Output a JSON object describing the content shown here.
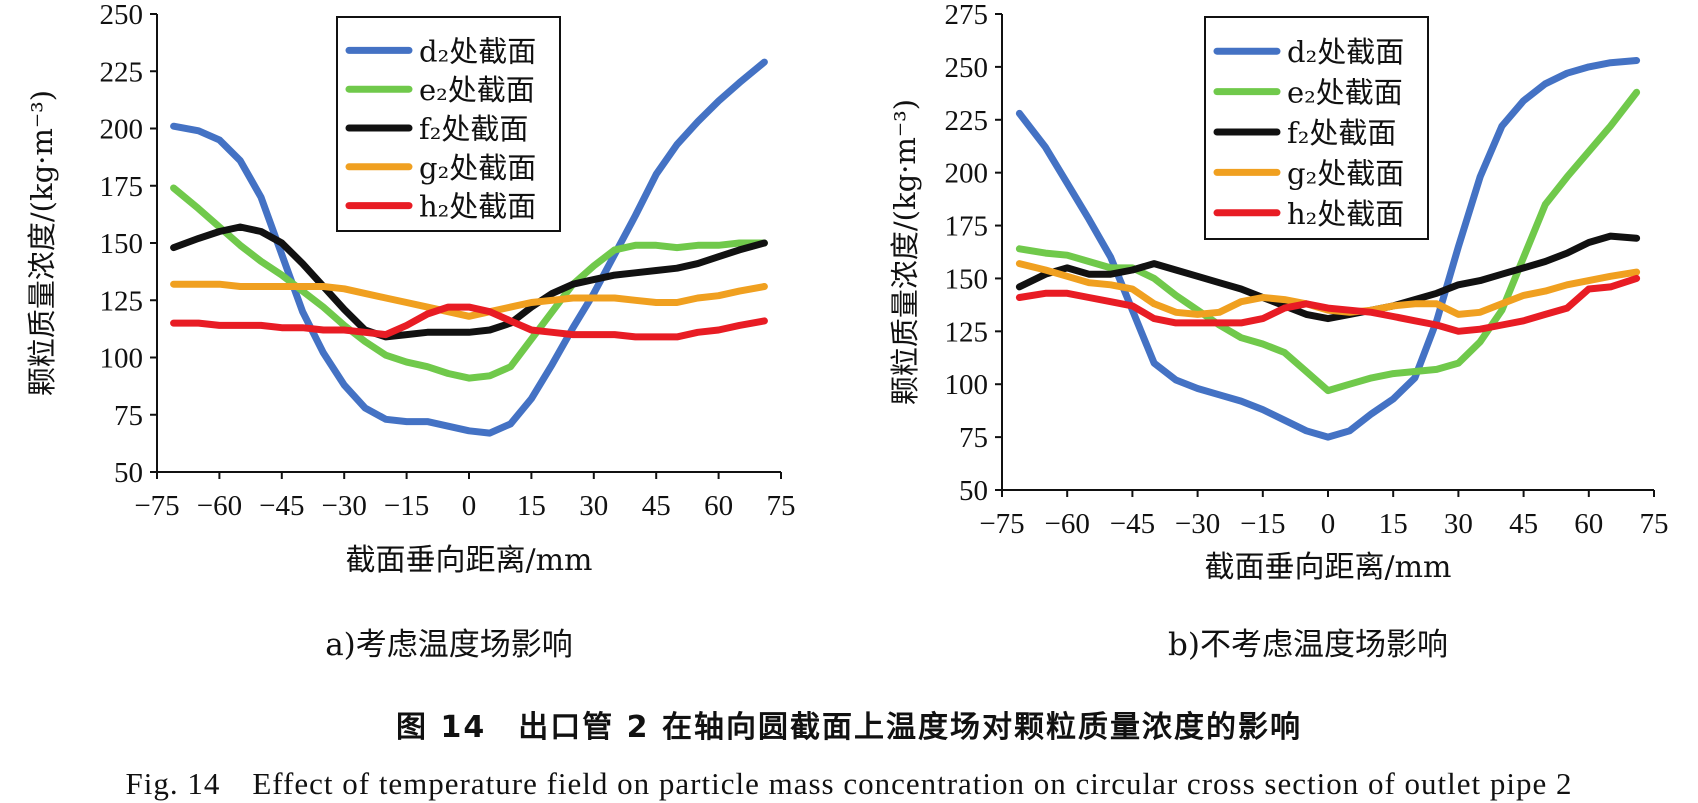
{
  "figure": {
    "caption_cn": "图 14　出口管 2 在轴向圆截面上温度场对颗粒质量浓度的影响",
    "caption_en": "Fig. 14　Effect of temperature field on particle mass concentration on circular cross section of outlet pipe 2"
  },
  "chart_data": [
    {
      "type": "line",
      "subtitle": "a)考虑温度场影响",
      "xlabel": "截面垂向距离/mm",
      "ylabel": "颗粒质量浓度/(kg·m⁻³)",
      "xlim": [
        -75,
        75
      ],
      "ylim": [
        50,
        250
      ],
      "xticks": [
        -75,
        -60,
        -45,
        -30,
        -15,
        0,
        15,
        30,
        45,
        60,
        75
      ],
      "xtick_labels": [
        "−75",
        "−60",
        "−45",
        "−30",
        "−15",
        "0",
        "15",
        "30",
        "45",
        "60",
        "75"
      ],
      "yticks": [
        50,
        75,
        100,
        125,
        150,
        175,
        200,
        225,
        250
      ],
      "grid": false,
      "legend_position": "top-center",
      "series": [
        {
          "name": "d₂处截面",
          "color": "#4472c4",
          "x": [
            -71,
            -65,
            -60,
            -55,
            -50,
            -45,
            -40,
            -35,
            -30,
            -25,
            -20,
            -15,
            -10,
            -5,
            0,
            5,
            10,
            15,
            20,
            25,
            30,
            35,
            40,
            45,
            50,
            55,
            60,
            65,
            71
          ],
          "y": [
            201,
            199,
            195,
            186,
            170,
            145,
            120,
            102,
            88,
            78,
            73,
            72,
            72,
            70,
            68,
            67,
            71,
            82,
            97,
            113,
            128,
            145,
            162,
            180,
            193,
            203,
            212,
            220,
            229
          ]
        },
        {
          "name": "e₂处截面",
          "color": "#70c94b",
          "x": [
            -71,
            -65,
            -60,
            -55,
            -50,
            -45,
            -40,
            -35,
            -30,
            -25,
            -20,
            -15,
            -10,
            -5,
            0,
            5,
            10,
            15,
            20,
            25,
            30,
            35,
            40,
            45,
            50,
            55,
            60,
            65,
            71
          ],
          "y": [
            174,
            165,
            157,
            149,
            142,
            136,
            129,
            122,
            114,
            107,
            101,
            98,
            96,
            93,
            91,
            92,
            96,
            108,
            120,
            132,
            140,
            147,
            149,
            149,
            148,
            149,
            149,
            150,
            150
          ]
        },
        {
          "name": "f₂处截面",
          "color": "#111111",
          "x": [
            -71,
            -65,
            -60,
            -55,
            -50,
            -45,
            -40,
            -35,
            -30,
            -25,
            -20,
            -15,
            -10,
            -5,
            0,
            5,
            10,
            15,
            20,
            25,
            30,
            35,
            40,
            45,
            50,
            55,
            60,
            65,
            71
          ],
          "y": [
            148,
            152,
            155,
            157,
            155,
            150,
            141,
            131,
            121,
            112,
            109,
            110,
            111,
            111,
            111,
            112,
            115,
            122,
            128,
            132,
            134,
            136,
            137,
            138,
            139,
            141,
            144,
            147,
            150
          ]
        },
        {
          "name": "g₂处截面",
          "color": "#f0a020",
          "x": [
            -71,
            -65,
            -60,
            -55,
            -50,
            -45,
            -40,
            -35,
            -30,
            -25,
            -20,
            -15,
            -10,
            -5,
            0,
            5,
            10,
            15,
            20,
            25,
            30,
            35,
            40,
            45,
            50,
            55,
            60,
            65,
            71
          ],
          "y": [
            132,
            132,
            132,
            131,
            131,
            131,
            131,
            131,
            130,
            128,
            126,
            124,
            122,
            120,
            118,
            120,
            122,
            124,
            125,
            126,
            126,
            126,
            125,
            124,
            124,
            126,
            127,
            129,
            131
          ]
        },
        {
          "name": "h₂处截面",
          "color": "#e81c24",
          "x": [
            -71,
            -65,
            -60,
            -55,
            -50,
            -45,
            -40,
            -35,
            -30,
            -25,
            -20,
            -15,
            -10,
            -5,
            0,
            5,
            10,
            15,
            20,
            25,
            30,
            35,
            40,
            45,
            50,
            55,
            60,
            65,
            71
          ],
          "y": [
            115,
            115,
            114,
            114,
            114,
            113,
            113,
            112,
            112,
            111,
            110,
            114,
            119,
            122,
            122,
            120,
            116,
            112,
            111,
            110,
            110,
            110,
            109,
            109,
            109,
            111,
            112,
            114,
            116
          ]
        }
      ]
    },
    {
      "type": "line",
      "subtitle": "b)不考虑温度场影响",
      "xlabel": "截面垂向距离/mm",
      "ylabel": "颗粒质量浓度/(kg·m⁻³)",
      "xlim": [
        -75,
        75
      ],
      "ylim": [
        50,
        275
      ],
      "xticks": [
        -75,
        -60,
        -45,
        -30,
        -15,
        0,
        15,
        30,
        45,
        60,
        75
      ],
      "xtick_labels": [
        "−75",
        "−60",
        "−45",
        "−30",
        "−15",
        "0",
        "15",
        "30",
        "45",
        "60",
        "75"
      ],
      "yticks": [
        50,
        75,
        100,
        125,
        150,
        175,
        200,
        225,
        250,
        275
      ],
      "grid": false,
      "legend_position": "top-center",
      "series": [
        {
          "name": "d₂处截面",
          "color": "#4472c4",
          "x": [
            -71,
            -65,
            -60,
            -55,
            -50,
            -45,
            -40,
            -35,
            -30,
            -25,
            -20,
            -15,
            -10,
            -5,
            0,
            5,
            10,
            15,
            20,
            25,
            30,
            35,
            40,
            45,
            50,
            55,
            60,
            65,
            71
          ],
          "y": [
            228,
            212,
            195,
            178,
            160,
            135,
            110,
            102,
            98,
            95,
            92,
            88,
            83,
            78,
            75,
            78,
            86,
            93,
            103,
            130,
            165,
            198,
            222,
            234,
            242,
            247,
            250,
            252,
            253
          ]
        },
        {
          "name": "e₂处截面",
          "color": "#70c94b",
          "x": [
            -71,
            -65,
            -60,
            -55,
            -50,
            -45,
            -40,
            -35,
            -30,
            -25,
            -20,
            -15,
            -10,
            -5,
            0,
            5,
            10,
            15,
            20,
            25,
            30,
            35,
            40,
            45,
            50,
            55,
            60,
            65,
            71
          ],
          "y": [
            164,
            162,
            161,
            158,
            155,
            155,
            150,
            142,
            135,
            128,
            122,
            119,
            115,
            106,
            97,
            100,
            103,
            105,
            106,
            107,
            110,
            120,
            135,
            160,
            185,
            198,
            210,
            222,
            238
          ]
        },
        {
          "name": "f₂处截面",
          "color": "#111111",
          "x": [
            -71,
            -65,
            -60,
            -55,
            -50,
            -45,
            -40,
            -35,
            -30,
            -25,
            -20,
            -15,
            -10,
            -5,
            0,
            5,
            10,
            15,
            20,
            25,
            30,
            35,
            40,
            45,
            50,
            55,
            60,
            65,
            71
          ],
          "y": [
            146,
            152,
            155,
            152,
            152,
            154,
            157,
            154,
            151,
            148,
            145,
            141,
            137,
            133,
            131,
            133,
            135,
            137,
            140,
            143,
            147,
            149,
            152,
            155,
            158,
            162,
            167,
            170,
            169
          ]
        },
        {
          "name": "g₂处截面",
          "color": "#f0a020",
          "x": [
            -71,
            -65,
            -60,
            -55,
            -50,
            -45,
            -40,
            -35,
            -30,
            -25,
            -20,
            -15,
            -10,
            -5,
            0,
            5,
            10,
            15,
            20,
            25,
            30,
            35,
            40,
            45,
            50,
            55,
            60,
            65,
            71
          ],
          "y": [
            157,
            154,
            151,
            148,
            147,
            145,
            138,
            134,
            133,
            134,
            139,
            141,
            140,
            138,
            135,
            134,
            135,
            137,
            138,
            138,
            133,
            134,
            138,
            142,
            144,
            147,
            149,
            151,
            153
          ]
        },
        {
          "name": "h₂处截面",
          "color": "#e81c24",
          "x": [
            -71,
            -65,
            -60,
            -55,
            -50,
            -45,
            -40,
            -35,
            -30,
            -25,
            -20,
            -15,
            -10,
            -5,
            0,
            5,
            10,
            15,
            20,
            25,
            30,
            35,
            40,
            45,
            50,
            55,
            60,
            65,
            71
          ],
          "y": [
            141,
            143,
            143,
            141,
            139,
            137,
            131,
            129,
            129,
            129,
            129,
            131,
            136,
            138,
            136,
            135,
            134,
            132,
            130,
            128,
            125,
            126,
            128,
            130,
            133,
            136,
            145,
            146,
            150
          ]
        }
      ]
    }
  ]
}
